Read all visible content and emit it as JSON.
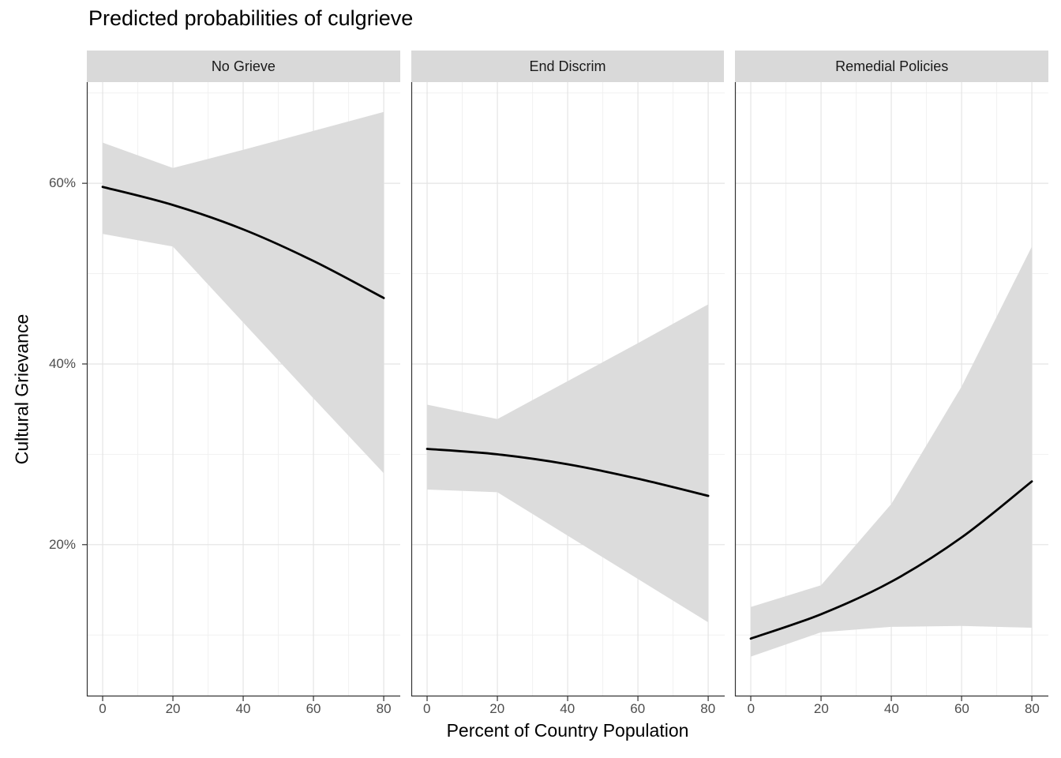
{
  "chart_data": {
    "type": "line",
    "title": "Predicted probabilities of culgrieve",
    "xlabel": "Percent of Country Population",
    "ylabel": "Cultural Grievance",
    "legend": "none",
    "grid": true,
    "x": [
      0,
      20,
      40,
      60,
      80
    ],
    "x_ticks": [
      0,
      20,
      40,
      60,
      80
    ],
    "x_tick_labels": [
      "0",
      "20",
      "40",
      "60",
      "80"
    ],
    "x_minor_ticks": [
      10,
      30,
      50,
      70
    ],
    "y_ticks": [
      20,
      40,
      60
    ],
    "y_tick_labels": [
      "20%",
      "40%",
      "60%"
    ],
    "y_minor_ticks": [
      10,
      30,
      50,
      70
    ],
    "x_domain": [
      -4.5,
      84.7
    ],
    "y_domain": [
      3.2,
      71.2
    ],
    "facets": [
      {
        "label": "No Grieve",
        "fit": [
          59.6,
          57.6,
          54.9,
          51.4,
          47.3
        ],
        "ci_lower": [
          54.4,
          53.0,
          44.6,
          36.2,
          27.9
        ],
        "ci_upper": [
          64.5,
          61.7,
          63.7,
          65.8,
          67.9
        ]
      },
      {
        "label": "End Discrim",
        "fit": [
          30.6,
          30.0,
          28.9,
          27.3,
          25.4
        ],
        "ci_lower": [
          26.1,
          25.8,
          21.0,
          16.2,
          11.4
        ],
        "ci_upper": [
          35.5,
          33.9,
          38.1,
          42.3,
          46.6
        ]
      },
      {
        "label": "Remedial Policies",
        "fit": [
          9.6,
          12.3,
          15.9,
          20.8,
          27.0
        ],
        "ci_lower": [
          7.6,
          10.3,
          10.9,
          11.0,
          10.8
        ],
        "ci_upper": [
          13.1,
          15.5,
          24.5,
          37.5,
          53.0
        ]
      }
    ],
    "colors": {
      "line": "#000000",
      "ribbon": "#dcdcdc",
      "strip_bg": "#d9d9d9",
      "strip_text": "#1a1a1a",
      "grid_major": "#e4e4e4",
      "grid_minor": "#f1f1f1",
      "axis_line": "#333333",
      "axis_text": "#4d4d4d",
      "panel_bg": "#ffffff"
    }
  }
}
